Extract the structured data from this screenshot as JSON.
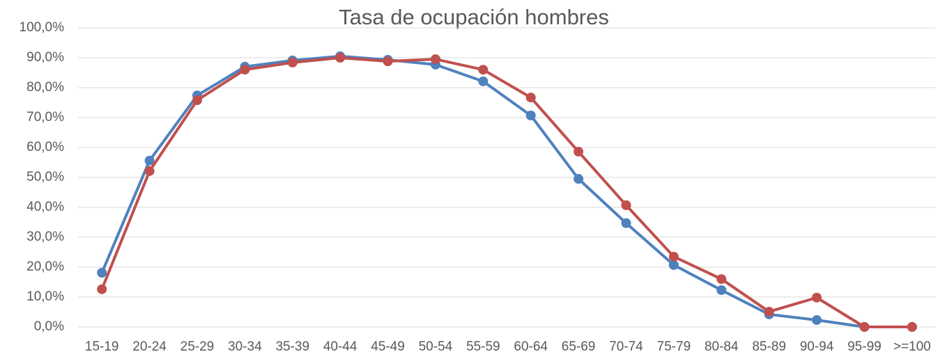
{
  "chart_data": {
    "type": "line",
    "title": "Tasa de ocupación hombres",
    "categories": [
      "15-19",
      "20-24",
      "25-29",
      "30-34",
      "35-39",
      "40-44",
      "45-49",
      "50-54",
      "55-59",
      "60-64",
      "65-69",
      "70-74",
      "75-79",
      "80-84",
      "85-89",
      "90-94",
      "95-99",
      ">=100"
    ],
    "series": [
      {
        "color": "#4f81bd",
        "values": [
          18.1,
          55.6,
          77.4,
          87.0,
          89.1,
          90.5,
          89.3,
          87.7,
          82.1,
          70.7,
          49.5,
          34.7,
          20.7,
          12.3,
          4.2,
          2.3,
          0,
          0
        ]
      },
      {
        "color": "#c0504d",
        "values": [
          12.6,
          52.1,
          75.8,
          86.0,
          88.4,
          90.0,
          88.8,
          89.5,
          86.0,
          76.7,
          58.6,
          40.7,
          23.5,
          16.0,
          5.1,
          9.8,
          0,
          0
        ]
      }
    ],
    "ylim": [
      0,
      100
    ],
    "yticks": [
      {
        "value": 0,
        "label": "0,0%"
      },
      {
        "value": 10,
        "label": "10,0%"
      },
      {
        "value": 20,
        "label": "20,0%"
      },
      {
        "value": 30,
        "label": "30,0%"
      },
      {
        "value": 40,
        "label": "40,0%"
      },
      {
        "value": 50,
        "label": "50,0%"
      },
      {
        "value": 60,
        "label": "60,0%"
      },
      {
        "value": 70,
        "label": "70,0%"
      },
      {
        "value": 80,
        "label": "80,0%"
      },
      {
        "value": 90,
        "label": "90,0%"
      },
      {
        "value": 100,
        "label": "100,0%"
      }
    ],
    "grid": true
  }
}
